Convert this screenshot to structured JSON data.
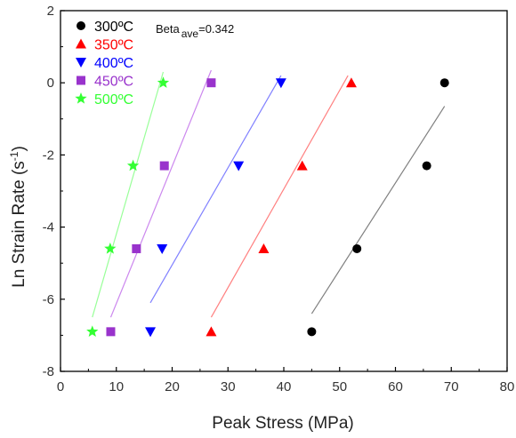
{
  "chart_data": {
    "type": "scatter",
    "xlabel": "Peak Stress (MPa)",
    "ylabel": "Ln Strain Rate (s",
    "ylabel_sup": "-1",
    "ylabel_end": ")",
    "xlim": [
      0,
      80
    ],
    "ylim": [
      -8,
      2
    ],
    "xticks": [
      0,
      10,
      20,
      30,
      40,
      50,
      60,
      70,
      80
    ],
    "yticks": [
      2,
      0,
      -2,
      -4,
      -6,
      -8
    ],
    "grid": false,
    "legend_position": "top-left",
    "annotation": {
      "prefix": "Beta",
      "subscript": "ave",
      "suffix": "=0.342"
    },
    "series": [
      {
        "name": "300ºC",
        "marker": "circle",
        "color": "#000000",
        "fit_color": "#808080",
        "points": [
          [
            45.0,
            -6.9
          ],
          [
            53.1,
            -4.6
          ],
          [
            65.6,
            -2.3
          ],
          [
            68.8,
            0.0
          ]
        ],
        "fit": [
          [
            45.0,
            -6.4
          ],
          [
            68.8,
            -0.65
          ]
        ]
      },
      {
        "name": "350ºC",
        "marker": "triangle-up",
        "color": "#ff0000",
        "fit_color": "#ff8080",
        "points": [
          [
            27.0,
            -6.9
          ],
          [
            36.4,
            -4.6
          ],
          [
            43.3,
            -2.3
          ],
          [
            52.1,
            0.0
          ]
        ],
        "fit": [
          [
            27.0,
            -6.5
          ],
          [
            51.5,
            0.2
          ]
        ]
      },
      {
        "name": "400ºC",
        "marker": "triangle-down",
        "color": "#0000ff",
        "fit_color": "#8080ff",
        "points": [
          [
            16.1,
            -6.9
          ],
          [
            18.2,
            -4.6
          ],
          [
            31.9,
            -2.3
          ],
          [
            39.5,
            0.0
          ]
        ],
        "fit": [
          [
            16.1,
            -6.1
          ],
          [
            39.5,
            0.2
          ]
        ]
      },
      {
        "name": "450ºC",
        "marker": "square",
        "color": "#9933cc",
        "fit_color": "#cc88ee",
        "points": [
          [
            9.0,
            -6.9
          ],
          [
            13.6,
            -4.6
          ],
          [
            18.6,
            -2.3
          ],
          [
            27.0,
            0.0
          ]
        ],
        "fit": [
          [
            9.0,
            -6.5
          ],
          [
            27.0,
            0.35
          ]
        ]
      },
      {
        "name": "500ºC",
        "marker": "star",
        "color": "#33ff33",
        "fit_color": "#99ff99",
        "points": [
          [
            5.7,
            -6.9
          ],
          [
            8.9,
            -4.6
          ],
          [
            13.0,
            -2.3
          ],
          [
            18.4,
            0.0
          ]
        ],
        "fit": [
          [
            5.7,
            -6.5
          ],
          [
            18.4,
            0.3
          ]
        ]
      }
    ]
  }
}
